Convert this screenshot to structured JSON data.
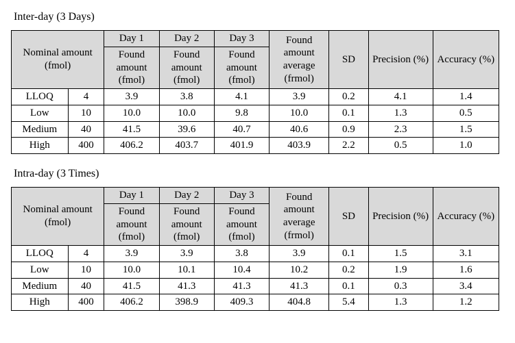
{
  "text_color": "#000000",
  "header_bg": "#d9d9d9",
  "border_color": "#000000",
  "background": "#ffffff",
  "font_family": "Times New Roman, Batang, serif",
  "sections": [
    {
      "title": "Inter-day (3 Days)",
      "headers": {
        "nominal": "Nominal amount (fmol)",
        "day_top": [
          "Day 1",
          "Day 2",
          "Day 3"
        ],
        "found_amount": "Found amount (fmol)",
        "found_avg": "Found amount average (frmol)",
        "sd": "SD",
        "precision": "Precision (%)",
        "accuracy": "Accuracy (%)"
      },
      "rows": [
        {
          "label": "LLOQ",
          "nominal": "4",
          "d1": "3.9",
          "d2": "3.8",
          "d3": "4.1",
          "avg": "3.9",
          "sd": "0.2",
          "prec": "4.1",
          "acc": "1.4"
        },
        {
          "label": "Low",
          "nominal": "10",
          "d1": "10.0",
          "d2": "10.0",
          "d3": "9.8",
          "avg": "10.0",
          "sd": "0.1",
          "prec": "1.3",
          "acc": "0.5"
        },
        {
          "label": "Medium",
          "nominal": "40",
          "d1": "41.5",
          "d2": "39.6",
          "d3": "40.7",
          "avg": "40.6",
          "sd": "0.9",
          "prec": "2.3",
          "acc": "1.5"
        },
        {
          "label": "High",
          "nominal": "400",
          "d1": "406.2",
          "d2": "403.7",
          "d3": "401.9",
          "avg": "403.9",
          "sd": "2.2",
          "prec": "0.5",
          "acc": "1.0"
        }
      ]
    },
    {
      "title": "Intra-day (3 Times)",
      "headers": {
        "nominal": "Nominal amount (fmol)",
        "day_top": [
          "Day 1",
          "Day 2",
          "Day 3"
        ],
        "found_amount": "Found amount (fmol)",
        "found_avg": "Found amount average (frmol)",
        "sd": "SD",
        "precision": "Precision (%)",
        "accuracy": "Accuracy (%)"
      },
      "rows": [
        {
          "label": "LLOQ",
          "nominal": "4",
          "d1": "3.9",
          "d2": "3.9",
          "d3": "3.8",
          "avg": "3.9",
          "sd": "0.1",
          "prec": "1.5",
          "acc": "3.1"
        },
        {
          "label": "Low",
          "nominal": "10",
          "d1": "10.0",
          "d2": "10.1",
          "d3": "10.4",
          "avg": "10.2",
          "sd": "0.2",
          "prec": "1.9",
          "acc": "1.6"
        },
        {
          "label": "Medium",
          "nominal": "40",
          "d1": "41.5",
          "d2": "41.3",
          "d3": "41.3",
          "avg": "41.3",
          "sd": "0.1",
          "prec": "0.3",
          "acc": "3.4"
        },
        {
          "label": "High",
          "nominal": "400",
          "d1": "406.2",
          "d2": "398.9",
          "d3": "409.3",
          "avg": "404.8",
          "sd": "5.4",
          "prec": "1.3",
          "acc": "1.2"
        }
      ]
    }
  ]
}
